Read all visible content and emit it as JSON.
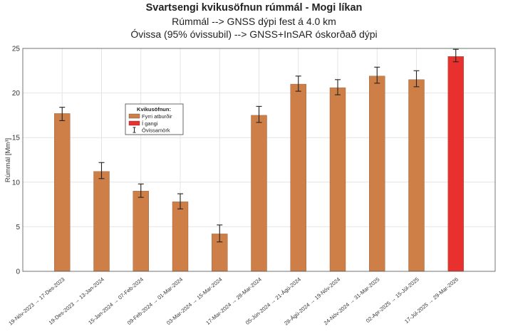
{
  "chart_data": {
    "type": "bar",
    "title": "Svartsengi kvikusöfnun rúmmál  -  Mogi líkan",
    "subtitle_1": "Rúmmál  --> GNSS dýpi fest á 4.0 km",
    "subtitle_2": "Óvissa (95% óvissubil) --> GNSS+InSAR óskorðað dýpi",
    "xlabel": "",
    "ylabel": "Rúmmál [Mm³]",
    "ylim": [
      0,
      25
    ],
    "yticks": [
      "0",
      "5",
      "10",
      "15",
      "20",
      "25"
    ],
    "grid": true,
    "legend": {
      "title": "Kvikusöfnun:",
      "placement": "upper-left",
      "entries": [
        {
          "label": "Fyrri atburðir",
          "color": "#CD7F47"
        },
        {
          "label": "Í gangi",
          "color": "#E8302E"
        },
        {
          "label": "Óvissamörk",
          "marker": "errorbar"
        }
      ]
    },
    "categories": [
      "19-Nóv-2023 → 17-Des-2023",
      "19-Des-2023 → 13-Jan-2024",
      "15-Jan-2024 → 07-Feb-2024",
      "09-Feb-2024 → 01-Mar-2024",
      "03-Mar-2024 → 15-Mar-2024",
      "17-Mar-2024 → 28-Mar-2024",
      "05-Jún-2024 → 21-Ágú-2024",
      "28-Ágú-2024 → 19-Nóv-2024",
      "24-Nóv-2024 → 31-Mar-2025",
      "02-Apr-2025 → 15-Júl-2025",
      "17-Júl-2025 → 29-Mar-2026"
    ],
    "values": [
      17.7,
      11.2,
      9.0,
      7.8,
      4.2,
      17.5,
      21.0,
      20.6,
      21.9,
      21.5,
      24.1
    ],
    "error_low": [
      16.9,
      10.4,
      8.3,
      7.0,
      3.3,
      16.7,
      20.2,
      19.8,
      21.1,
      20.7,
      23.5
    ],
    "error_high": [
      18.4,
      12.2,
      9.8,
      8.7,
      5.2,
      18.5,
      21.9,
      21.5,
      22.9,
      22.5,
      24.9
    ],
    "bar_status": [
      "past",
      "past",
      "past",
      "past",
      "past",
      "past",
      "past",
      "past",
      "past",
      "past",
      "ongoing"
    ],
    "colors": {
      "past": "#CD7F47",
      "ongoing": "#E8302E",
      "error": "#222222",
      "grid": "#E4E4E4",
      "axis": "#555555"
    }
  }
}
